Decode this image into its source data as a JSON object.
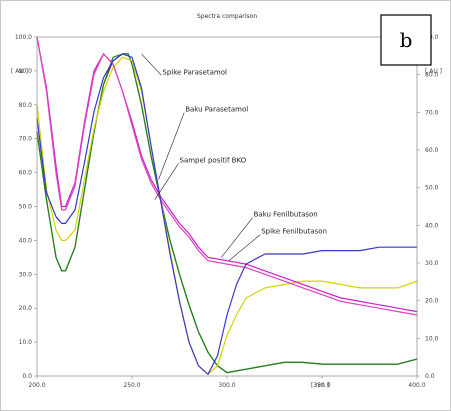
{
  "chart_data": {
    "type": "line",
    "title": "Spectra comparison",
    "xlabel": "[ nm ]",
    "ylabel_left": "[ AU ]",
    "ylabel_right": "[ AU ]",
    "panel_label": "b",
    "xlim": [
      200,
      400
    ],
    "ylim_left": [
      0,
      100
    ],
    "ylim_right": [
      0,
      90
    ],
    "x_ticks": [
      "200.0",
      "250.0",
      "300.0",
      "350.0",
      "400.0"
    ],
    "y_ticks_left": [
      "100.0",
      "90.0",
      "80.0",
      "70.0",
      "60.0",
      "50.0",
      "40.0",
      "30.0",
      "20.0",
      "10.0",
      "0.0"
    ],
    "y_ticks_right": [
      "90.0",
      "80.0",
      "70.0",
      "60.0",
      "50.0",
      "40.0",
      "30.0",
      "20.0",
      "10.0",
      "0.0"
    ],
    "grid": false,
    "series": [
      {
        "name": "Spike Parasetamol",
        "color": "#7a1a3a",
        "x": [
          200,
          205,
          210,
          213,
          215,
          220,
          225,
          230,
          235,
          240,
          245,
          248,
          250,
          255,
          260,
          265,
          270,
          275,
          280,
          285,
          290,
          295,
          300,
          310,
          320,
          330,
          340,
          350,
          360,
          370,
          380,
          390,
          400
        ],
        "y": [
          72,
          52,
          35,
          31,
          31,
          38,
          55,
          72,
          86,
          93,
          95,
          95,
          92,
          80,
          65,
          52,
          40,
          30,
          21,
          13,
          7,
          3,
          1,
          2,
          3,
          4,
          4,
          3.5,
          3.5,
          3.5,
          3.5,
          3.5,
          5
        ]
      },
      {
        "name": "Baku Parasetamol",
        "color": "#1a8a1a",
        "x": [
          200,
          205,
          210,
          213,
          215,
          220,
          225,
          230,
          235,
          240,
          245,
          248,
          250,
          255,
          260,
          265,
          270,
          275,
          280,
          285,
          290,
          295,
          300,
          310,
          320,
          330,
          340,
          350,
          360,
          370,
          380,
          390,
          400
        ],
        "y": [
          72,
          52,
          35,
          31,
          31,
          38,
          55,
          72,
          86,
          94,
          95,
          95,
          92,
          80,
          65,
          52,
          40,
          30,
          21,
          13,
          7,
          3,
          1,
          2,
          3,
          4,
          4,
          3.5,
          3.5,
          3.5,
          3.5,
          3.5,
          5
        ]
      },
      {
        "name": "Sampel positif BKO",
        "color": "#d4d400",
        "x": [
          200,
          205,
          210,
          213,
          215,
          220,
          225,
          230,
          235,
          240,
          245,
          250,
          255,
          260,
          265,
          270,
          275,
          280,
          285,
          290,
          295,
          300,
          305,
          310,
          320,
          330,
          340,
          350,
          360,
          370,
          380,
          390,
          400
        ],
        "y": [
          80,
          55,
          43,
          40,
          40,
          43,
          58,
          73,
          84,
          91,
          94,
          93,
          84,
          68,
          52,
          37,
          22,
          10,
          3,
          0.5,
          3,
          12,
          18,
          23,
          26,
          27,
          28,
          28,
          27,
          26,
          26,
          26,
          28
        ]
      },
      {
        "name": "Baku Fenilbutason",
        "color": "#cc22cc",
        "x": [
          200,
          205,
          210,
          213,
          215,
          220,
          225,
          230,
          235,
          240,
          245,
          250,
          255,
          260,
          265,
          270,
          275,
          280,
          285,
          290,
          300,
          310,
          320,
          330,
          340,
          350,
          360,
          370,
          380,
          390,
          400
        ],
        "y": [
          100,
          85,
          62,
          50,
          50,
          57,
          75,
          90,
          95,
          92,
          84,
          75,
          65,
          58,
          53,
          49,
          45,
          42,
          38,
          35,
          34,
          33,
          31,
          29,
          27,
          25,
          23,
          22,
          21,
          20,
          19
        ]
      },
      {
        "name": "Spike Fenilbutason",
        "color": "#e040c0",
        "x": [
          200,
          205,
          210,
          213,
          215,
          220,
          225,
          230,
          235,
          240,
          245,
          250,
          255,
          260,
          265,
          270,
          275,
          280,
          285,
          290,
          300,
          310,
          320,
          330,
          340,
          350,
          360,
          370,
          380,
          390,
          400
        ],
        "y": [
          100,
          84,
          60,
          49,
          49,
          56,
          74,
          89,
          95,
          92,
          84,
          74,
          64,
          57,
          52,
          48,
          44,
          41,
          37,
          34,
          33,
          32,
          30,
          28,
          26,
          24,
          22,
          21,
          20,
          19,
          18
        ]
      },
      {
        "name": "",
        "color": "#3838c8",
        "x": [
          200,
          205,
          210,
          213,
          215,
          220,
          225,
          230,
          235,
          240,
          245,
          250,
          255,
          260,
          265,
          270,
          275,
          280,
          285,
          290,
          295,
          300,
          305,
          310,
          320,
          330,
          340,
          350,
          360,
          370,
          380,
          390,
          400
        ],
        "y": [
          76,
          54,
          47,
          45,
          45,
          49,
          63,
          78,
          88,
          93,
          95,
          94,
          85,
          68,
          52,
          36,
          22,
          10,
          3,
          0.5,
          6,
          18,
          27,
          33,
          36,
          36,
          36,
          37,
          37,
          37,
          38,
          38,
          38
        ]
      }
    ],
    "annotations": [
      {
        "text": "Spike Parasetamol",
        "x": 255,
        "y": 95,
        "tx": 266,
        "ty": 89
      },
      {
        "text": "Baku Parasetamol",
        "x": 264,
        "y": 58,
        "tx": 278,
        "ty": 78
      },
      {
        "text": "Sampel positif BKO",
        "x": 262,
        "y": 52,
        "tx": 275,
        "ty": 63
      },
      {
        "text": "Baku Fenilbutason",
        "x": 297,
        "y": 35,
        "tx": 314,
        "ty": 47
      },
      {
        "text": "Spike Fenilbutason",
        "x": 301,
        "y": 34,
        "tx": 318,
        "ty": 42
      }
    ]
  }
}
